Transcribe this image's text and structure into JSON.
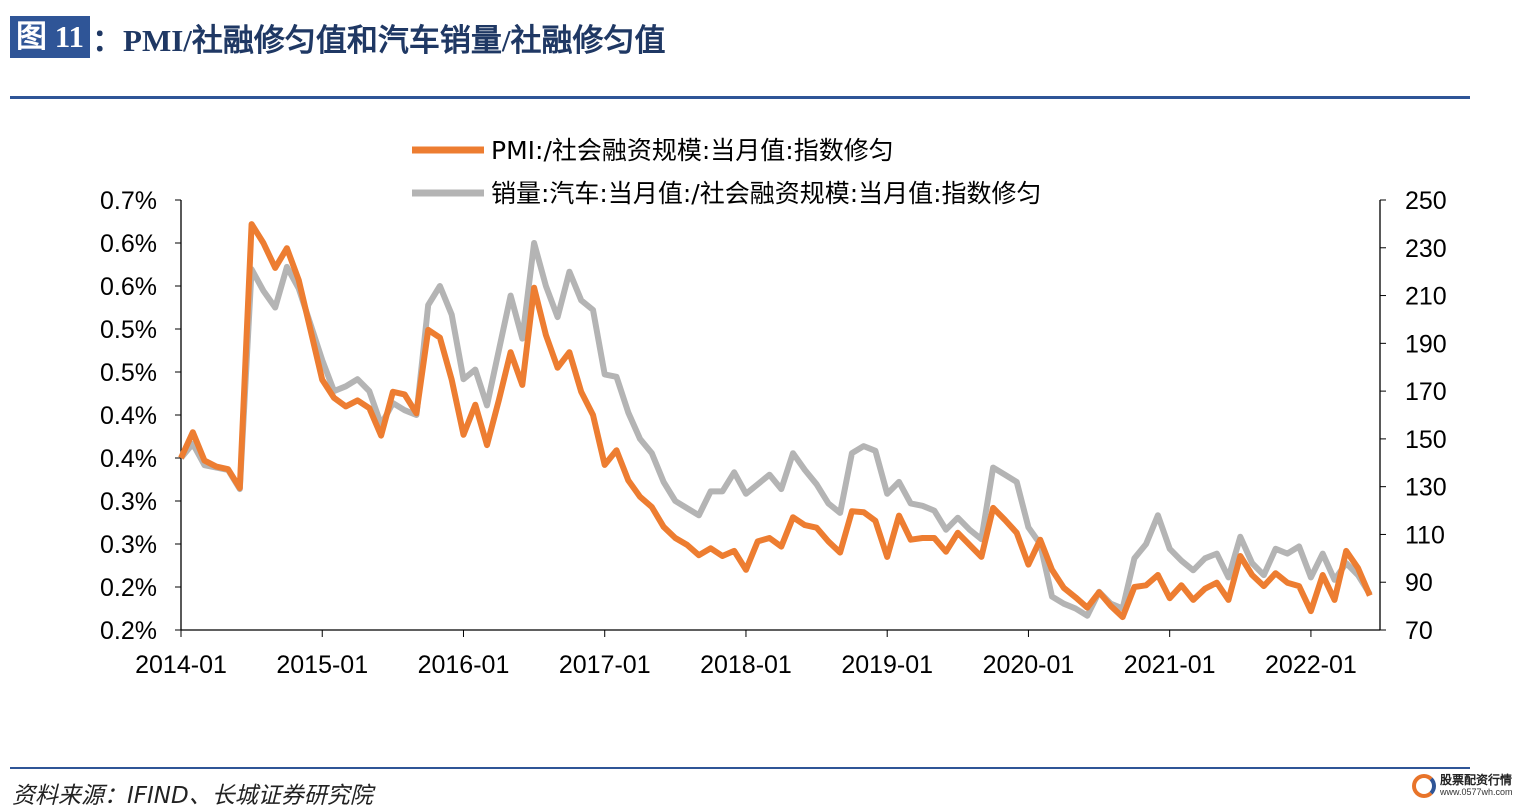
{
  "header": {
    "figure_label": "图 11",
    "title": "：PMI/社融修匀值和汽车销量/社融修匀值"
  },
  "footer": {
    "source": "资料来源：IFIND、长城证券研究院",
    "logo_text": "股票配资行情",
    "logo_url": "www.0577wh.com"
  },
  "chart_data": {
    "type": "line",
    "title": "",
    "grid": false,
    "legend_position": "top",
    "x_tick_labels": [
      "2014-01",
      "2015-01",
      "2016-01",
      "2017-01",
      "2018-01",
      "2019-01",
      "2020-01",
      "2021-01",
      "2022-01"
    ],
    "y_left": {
      "range": [
        0.2,
        0.7
      ],
      "unit": "%",
      "tick_labels": [
        "0.7%",
        "0.6%",
        "0.6%",
        "0.5%",
        "0.5%",
        "0.4%",
        "0.4%",
        "0.3%",
        "0.3%",
        "0.2%",
        "0.2%"
      ]
    },
    "y_right": {
      "range": [
        70,
        250
      ],
      "tick_labels": [
        "250",
        "230",
        "210",
        "190",
        "170",
        "150",
        "130",
        "110",
        "90",
        "70"
      ]
    },
    "x": [
      "2014-01",
      "2014-02",
      "2014-03",
      "2014-04",
      "2014-05",
      "2014-06",
      "2014-07",
      "2014-08",
      "2014-09",
      "2014-10",
      "2014-11",
      "2014-12",
      "2015-01",
      "2015-02",
      "2015-03",
      "2015-04",
      "2015-05",
      "2015-06",
      "2015-07",
      "2015-08",
      "2015-09",
      "2015-10",
      "2015-11",
      "2015-12",
      "2016-01",
      "2016-02",
      "2016-03",
      "2016-04",
      "2016-05",
      "2016-06",
      "2016-07",
      "2016-08",
      "2016-09",
      "2016-10",
      "2016-11",
      "2016-12",
      "2017-01",
      "2017-02",
      "2017-03",
      "2017-04",
      "2017-05",
      "2017-06",
      "2017-07",
      "2017-08",
      "2017-09",
      "2017-10",
      "2017-11",
      "2017-12",
      "2018-01",
      "2018-02",
      "2018-03",
      "2018-04",
      "2018-05",
      "2018-06",
      "2018-07",
      "2018-08",
      "2018-09",
      "2018-10",
      "2018-11",
      "2018-12",
      "2019-01",
      "2019-02",
      "2019-03",
      "2019-04",
      "2019-05",
      "2019-06",
      "2019-07",
      "2019-08",
      "2019-09",
      "2019-10",
      "2019-11",
      "2019-12",
      "2020-01",
      "2020-02",
      "2020-03",
      "2020-04",
      "2020-05",
      "2020-06",
      "2020-07",
      "2020-08",
      "2020-09",
      "2020-10",
      "2020-11",
      "2020-12",
      "2021-01",
      "2021-02",
      "2021-03",
      "2021-04",
      "2021-05",
      "2021-06",
      "2021-07",
      "2021-08",
      "2021-09",
      "2021-10",
      "2021-11",
      "2021-12",
      "2022-01",
      "2022-02",
      "2022-03",
      "2022-04",
      "2022-05",
      "2022-06"
    ],
    "series": [
      {
        "name": "PMI:/社会融资规模:当月值:指数修匀",
        "axis": "left",
        "color": "#ED7D31",
        "values": [
          0.4,
          0.43,
          0.397,
          0.39,
          0.387,
          0.365,
          0.672,
          0.65,
          0.621,
          0.644,
          0.607,
          0.549,
          0.491,
          0.47,
          0.46,
          0.467,
          0.458,
          0.426,
          0.477,
          0.474,
          0.452,
          0.549,
          0.54,
          0.491,
          0.427,
          0.462,
          0.415,
          0.467,
          0.523,
          0.485,
          0.598,
          0.543,
          0.505,
          0.523,
          0.477,
          0.45,
          0.392,
          0.409,
          0.374,
          0.355,
          0.343,
          0.32,
          0.307,
          0.299,
          0.287,
          0.295,
          0.286,
          0.292,
          0.27,
          0.303,
          0.307,
          0.297,
          0.331,
          0.322,
          0.319,
          0.303,
          0.29,
          0.338,
          0.337,
          0.327,
          0.285,
          0.333,
          0.305,
          0.307,
          0.307,
          0.291,
          0.313,
          0.299,
          0.285,
          0.342,
          0.328,
          0.313,
          0.276,
          0.305,
          0.27,
          0.249,
          0.238,
          0.226,
          0.244,
          0.228,
          0.215,
          0.25,
          0.252,
          0.264,
          0.237,
          0.252,
          0.235,
          0.248,
          0.255,
          0.235,
          0.286,
          0.264,
          0.251,
          0.266,
          0.255,
          0.251,
          0.222,
          0.264,
          0.235,
          0.292,
          0.272,
          0.24
        ]
      },
      {
        "name": "销量:汽车:当月值:/社会融资规模:当月值:指数修匀",
        "axis": "right",
        "color": "#B4B4B4",
        "values": [
          142,
          148,
          139,
          138,
          137,
          129,
          221,
          212,
          205,
          222,
          213,
          198,
          183,
          170,
          172,
          175,
          170,
          156,
          165,
          162,
          160,
          206,
          214,
          202,
          175,
          179,
          164,
          187,
          210,
          192,
          232,
          214,
          201,
          220,
          208,
          204,
          177,
          176,
          161,
          150,
          144,
          132,
          124,
          121,
          118,
          128,
          128,
          136,
          127,
          131,
          135,
          129,
          144,
          137,
          131,
          123,
          119,
          144,
          147,
          145,
          127,
          132,
          123,
          122,
          120,
          112,
          117,
          112,
          108,
          138,
          135,
          132,
          113,
          106,
          84,
          81,
          79,
          76,
          86,
          81,
          79,
          100,
          106,
          118,
          104,
          99,
          95,
          100,
          102,
          92,
          109,
          98,
          93,
          104,
          102,
          105,
          92,
          102,
          91,
          98,
          93,
          85
        ]
      }
    ]
  }
}
